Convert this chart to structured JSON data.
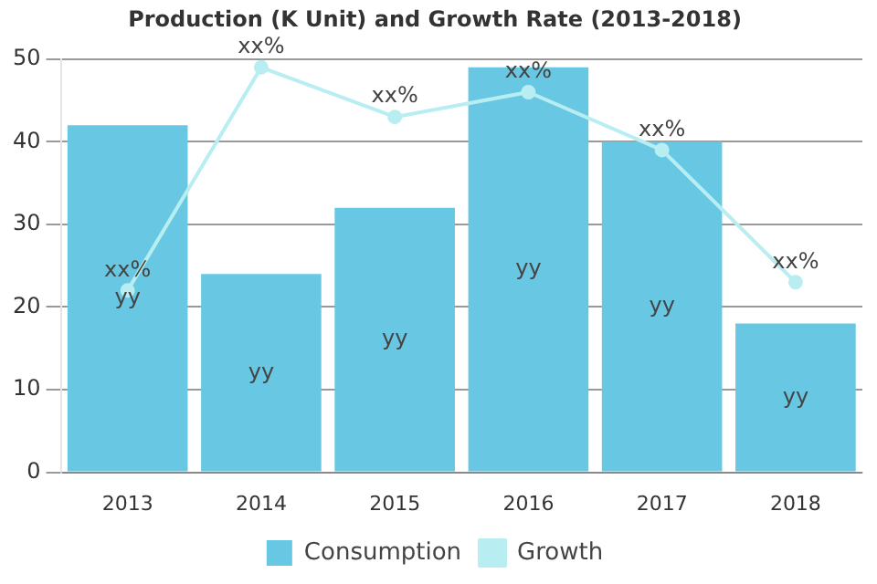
{
  "chart_data": {
    "type": "bar",
    "title": "Production (K Unit) and Growth Rate (2013-2018)",
    "categories": [
      "2013",
      "2014",
      "2015",
      "2016",
      "2017",
      "2018"
    ],
    "series": [
      {
        "name": "Consumption",
        "color": "#68c8e3",
        "values": [
          42,
          24,
          32,
          49,
          40,
          18
        ],
        "value_labels": [
          "yy",
          "yy",
          "yy",
          "yy",
          "yy",
          "yy"
        ]
      },
      {
        "name": "Growth",
        "type": "line",
        "color": "#b8eef2",
        "values": [
          22,
          49,
          43,
          46,
          39,
          23
        ],
        "value_labels": [
          "xx%",
          "xx%",
          "xx%",
          "xx%",
          "xx%",
          "xx%"
        ]
      }
    ],
    "ylim": [
      0,
      50
    ],
    "yticks": [
      0,
      10,
      20,
      30,
      40,
      50
    ],
    "grid": "y",
    "legend": "bottom",
    "marker": "circle"
  }
}
